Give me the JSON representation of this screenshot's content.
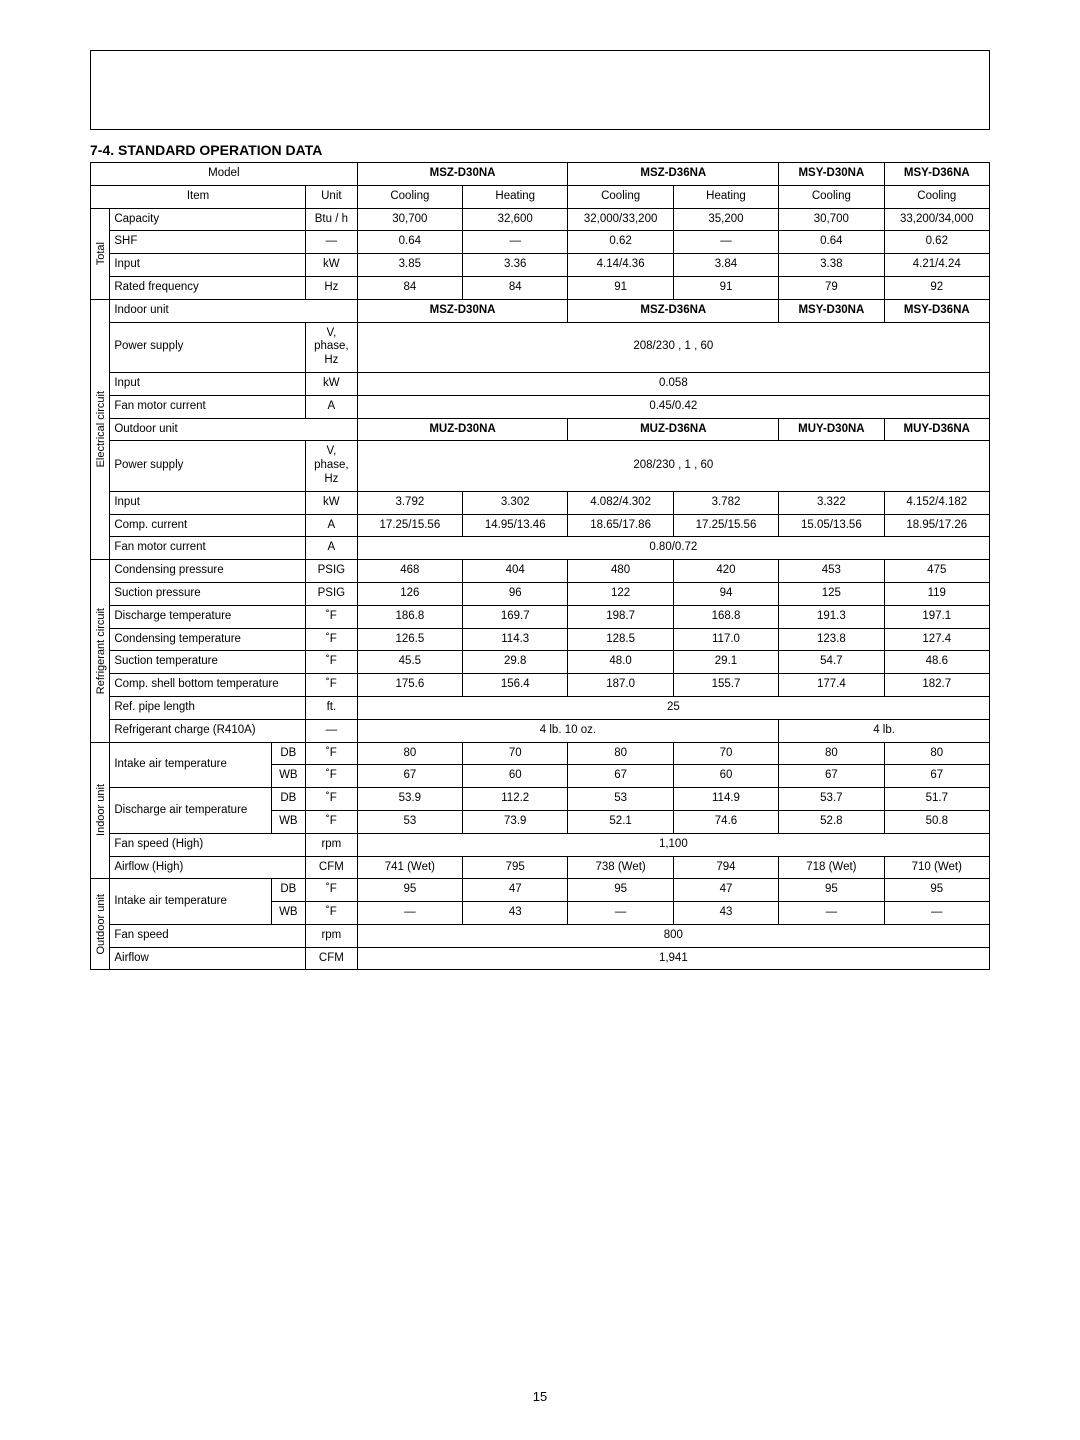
{
  "page_number": "15",
  "section_heading": "7-4. STANDARD OPERATION DATA",
  "headers": {
    "model": "Model",
    "msz30": "MSZ-D30NA",
    "msz36": "MSZ-D36NA",
    "msy30": "MSY-D30NA",
    "msy36": "MSY-D36NA",
    "item": "Item",
    "unit": "Unit",
    "cooling": "Cooling",
    "heating": "Heating",
    "indoor_unit": "Indoor unit",
    "outdoor_unit": "Outdoor unit",
    "muz30": "MUZ-D30NA",
    "muz36": "MUZ-D36NA",
    "muy30": "MUY-D30NA",
    "muy36": "MUY-D36NA"
  },
  "groups": {
    "total": "Total",
    "elec": "Electrical circuit",
    "refr": "Refrigerant circuit",
    "indoor": "Indoor unit",
    "outdoor": "Outdoor unit"
  },
  "labels": {
    "capacity": "Capacity",
    "shf": "SHF",
    "input": "Input",
    "rated_freq": "Rated frequency",
    "power_supply": "Power supply",
    "fan_motor_current": "Fan motor current",
    "comp_current": "Comp. current",
    "cond_pressure": "Condensing pressure",
    "suct_pressure": "Suction pressure",
    "discharge_temp": "Discharge temperature",
    "cond_temp": "Condensing temperature",
    "suct_temp": "Suction temperature",
    "comp_shell_temp": "Comp. shell bottom temperature",
    "ref_pipe_len": "Ref. pipe length",
    "ref_charge": "Refrigerant charge (R410A)",
    "intake_air_temp": "Intake air temperature",
    "discharge_air_temp": "Discharge air temperature",
    "fan_speed_high": "Fan speed (High)",
    "airflow_high": "Airflow (High)",
    "fan_speed": "Fan speed",
    "airflow": "Airflow",
    "db": "DB",
    "wb": "WB"
  },
  "units": {
    "btuh": "Btu / h",
    "dash": "—",
    "kw": "kW",
    "hz": "Hz",
    "vphz": "V,\nphase,\nHz",
    "a": "A",
    "psig": "PSIG",
    "degf": "˚F",
    "ft": "ft.",
    "rpm": "rpm",
    "cfm": "CFM"
  },
  "vals": {
    "capacity": {
      "c1": "30,700",
      "h1": "32,600",
      "c2": "32,000/33,200",
      "h2": "35,200",
      "c3": "30,700",
      "c4": "33,200/34,000"
    },
    "shf": {
      "c1": "0.64",
      "h1": "—",
      "c2": "0.62",
      "h2": "—",
      "c3": "0.64",
      "c4": "0.62"
    },
    "input_total": {
      "c1": "3.85",
      "h1": "3.36",
      "c2": "4.14/4.36",
      "h2": "3.84",
      "c3": "3.38",
      "c4": "4.21/4.24"
    },
    "rated_freq": {
      "c1": "84",
      "h1": "84",
      "c2": "91",
      "h2": "91",
      "c3": "79",
      "c4": "92"
    },
    "indoor_power": "208/230 , 1 , 60",
    "indoor_input": "0.058",
    "indoor_fan": "0.45/0.42",
    "outdoor_power": "208/230 , 1 , 60",
    "out_input": {
      "c1": "3.792",
      "h1": "3.302",
      "c2": "4.082/4.302",
      "h2": "3.782",
      "c3": "3.322",
      "c4": "4.152/4.182"
    },
    "comp_curr": {
      "c1": "17.25/15.56",
      "h1": "14.95/13.46",
      "c2": "18.65/17.86",
      "h2": "17.25/15.56",
      "c3": "15.05/13.56",
      "c4": "18.95/17.26"
    },
    "out_fan": "0.80/0.72",
    "cond_press": {
      "c1": "468",
      "h1": "404",
      "c2": "480",
      "h2": "420",
      "c3": "453",
      "c4": "475"
    },
    "suct_press": {
      "c1": "126",
      "h1": "96",
      "c2": "122",
      "h2": "94",
      "c3": "125",
      "c4": "119"
    },
    "disch_temp": {
      "c1": "186.8",
      "h1": "169.7",
      "c2": "198.7",
      "h2": "168.8",
      "c3": "191.3",
      "c4": "197.1"
    },
    "cond_temp": {
      "c1": "126.5",
      "h1": "114.3",
      "c2": "128.5",
      "h2": "117.0",
      "c3": "123.8",
      "c4": "127.4"
    },
    "suct_temp": {
      "c1": "45.5",
      "h1": "29.8",
      "c2": "48.0",
      "h2": "29.1",
      "c3": "54.7",
      "c4": "48.6"
    },
    "shell_temp": {
      "c1": "175.6",
      "h1": "156.4",
      "c2": "187.0",
      "h2": "155.7",
      "c3": "177.4",
      "c4": "182.7"
    },
    "pipe_len": "25",
    "charge_msz": "4 lb. 10 oz.",
    "charge_msy": "4 lb.",
    "in_intake_db": {
      "c1": "80",
      "h1": "70",
      "c2": "80",
      "h2": "70",
      "c3": "80",
      "c4": "80"
    },
    "in_intake_wb": {
      "c1": "67",
      "h1": "60",
      "c2": "67",
      "h2": "60",
      "c3": "67",
      "c4": "67"
    },
    "in_disch_db": {
      "c1": "53.9",
      "h1": "112.2",
      "c2": "53",
      "h2": "114.9",
      "c3": "53.7",
      "c4": "51.7"
    },
    "in_disch_wb": {
      "c1": "53",
      "h1": "73.9",
      "c2": "52.1",
      "h2": "74.6",
      "c3": "52.8",
      "c4": "50.8"
    },
    "in_fan": "1,100",
    "airflow_high": {
      "c1": "741 (Wet)",
      "h1": "795",
      "c2": "738 (Wet)",
      "h2": "794",
      "c3": "718 (Wet)",
      "c4": "710 (Wet)"
    },
    "out_intake_db": {
      "c1": "95",
      "h1": "47",
      "c2": "95",
      "h2": "47",
      "c3": "95",
      "c4": "95"
    },
    "out_intake_wb": {
      "c1": "—",
      "h1": "43",
      "c2": "—",
      "h2": "43",
      "c3": "—",
      "c4": "—"
    },
    "out_fanspeed": "800",
    "out_airflow": "1,941"
  }
}
